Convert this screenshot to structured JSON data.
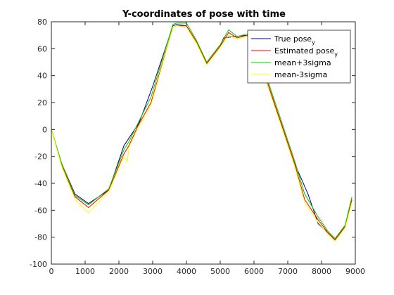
{
  "chart_data": {
    "type": "line",
    "title": "Y-coordinates of pose with time",
    "xlabel": "",
    "ylabel": "",
    "xlim": [
      0,
      9000
    ],
    "ylim": [
      -100,
      80
    ],
    "xticks": [
      0,
      1000,
      2000,
      3000,
      4000,
      5000,
      6000,
      7000,
      8000,
      9000
    ],
    "yticks": [
      -100,
      -80,
      -60,
      -40,
      -20,
      0,
      20,
      40,
      60,
      80
    ],
    "grid": false,
    "legend_position": "top-right",
    "series": [
      {
        "name": "True pose",
        "name_sub": "y",
        "color": "#00007f",
        "x": [
          0,
          300,
          700,
          1100,
          1700,
          2150,
          2600,
          3000,
          3600,
          3700,
          4000,
          4300,
          4600,
          5000,
          5100,
          5400,
          5800,
          6100,
          6400,
          6800,
          7200,
          7600,
          7900,
          8200,
          8400,
          8700,
          8900
        ],
        "y": [
          0,
          -25,
          -48,
          -55,
          -45,
          -12,
          5,
          32,
          77,
          78,
          77,
          65,
          49,
          62,
          68,
          69,
          70,
          55,
          33,
          5,
          -25,
          -48,
          -70,
          -77,
          -82,
          -72,
          -52
        ]
      },
      {
        "name": "Estimated pose",
        "name_sub": "y",
        "color": "#ff0000",
        "x": [
          0,
          300,
          700,
          1100,
          1700,
          2150,
          2300,
          2550,
          2950,
          3600,
          3700,
          4000,
          4300,
          4600,
          5000,
          5250,
          5500,
          5800,
          6100,
          6400,
          6800,
          7200,
          7500,
          7900,
          8200,
          8400,
          8700,
          8900
        ],
        "y": [
          0,
          -26,
          -50,
          -58,
          -45,
          -18,
          -12,
          2,
          20,
          76,
          77,
          77,
          65,
          49,
          62,
          72,
          68,
          70,
          60,
          35,
          5,
          -25,
          -52,
          -67,
          -77,
          -82,
          -72,
          -52
        ]
      },
      {
        "name": "mean+3sigma",
        "color": "#00cc00",
        "x": [
          0,
          300,
          700,
          1100,
          1700,
          2150,
          2300,
          2550,
          2950,
          3600,
          3700,
          4000,
          4300,
          4600,
          5000,
          5250,
          5500,
          5800,
          6100,
          6400,
          6800,
          7200,
          7500,
          7900,
          8200,
          8400,
          8700,
          8900
        ],
        "y": [
          0,
          -25,
          -49,
          -56,
          -44,
          -15,
          -9,
          4,
          24,
          78,
          79,
          79,
          66,
          50,
          63,
          74,
          69,
          71,
          62,
          37,
          7,
          -23,
          -48,
          -65,
          -76,
          -81,
          -71,
          -50
        ]
      },
      {
        "name": "mean-3sigma",
        "color": "#ffff00",
        "x": [
          0,
          300,
          700,
          1100,
          1700,
          2150,
          2250,
          2300,
          2550,
          2950,
          3600,
          3700,
          4000,
          4300,
          4600,
          5000,
          5250,
          5500,
          5800,
          6100,
          6400,
          6800,
          7200,
          7500,
          7900,
          8200,
          8400,
          8700,
          8900
        ],
        "y": [
          0,
          -27,
          -52,
          -62,
          -46,
          -20,
          -24,
          -13,
          0,
          18,
          76,
          77,
          76,
          64,
          48,
          61,
          70,
          67,
          69,
          58,
          33,
          3,
          -27,
          -54,
          -69,
          -78,
          -83,
          -73,
          -54
        ]
      }
    ]
  }
}
